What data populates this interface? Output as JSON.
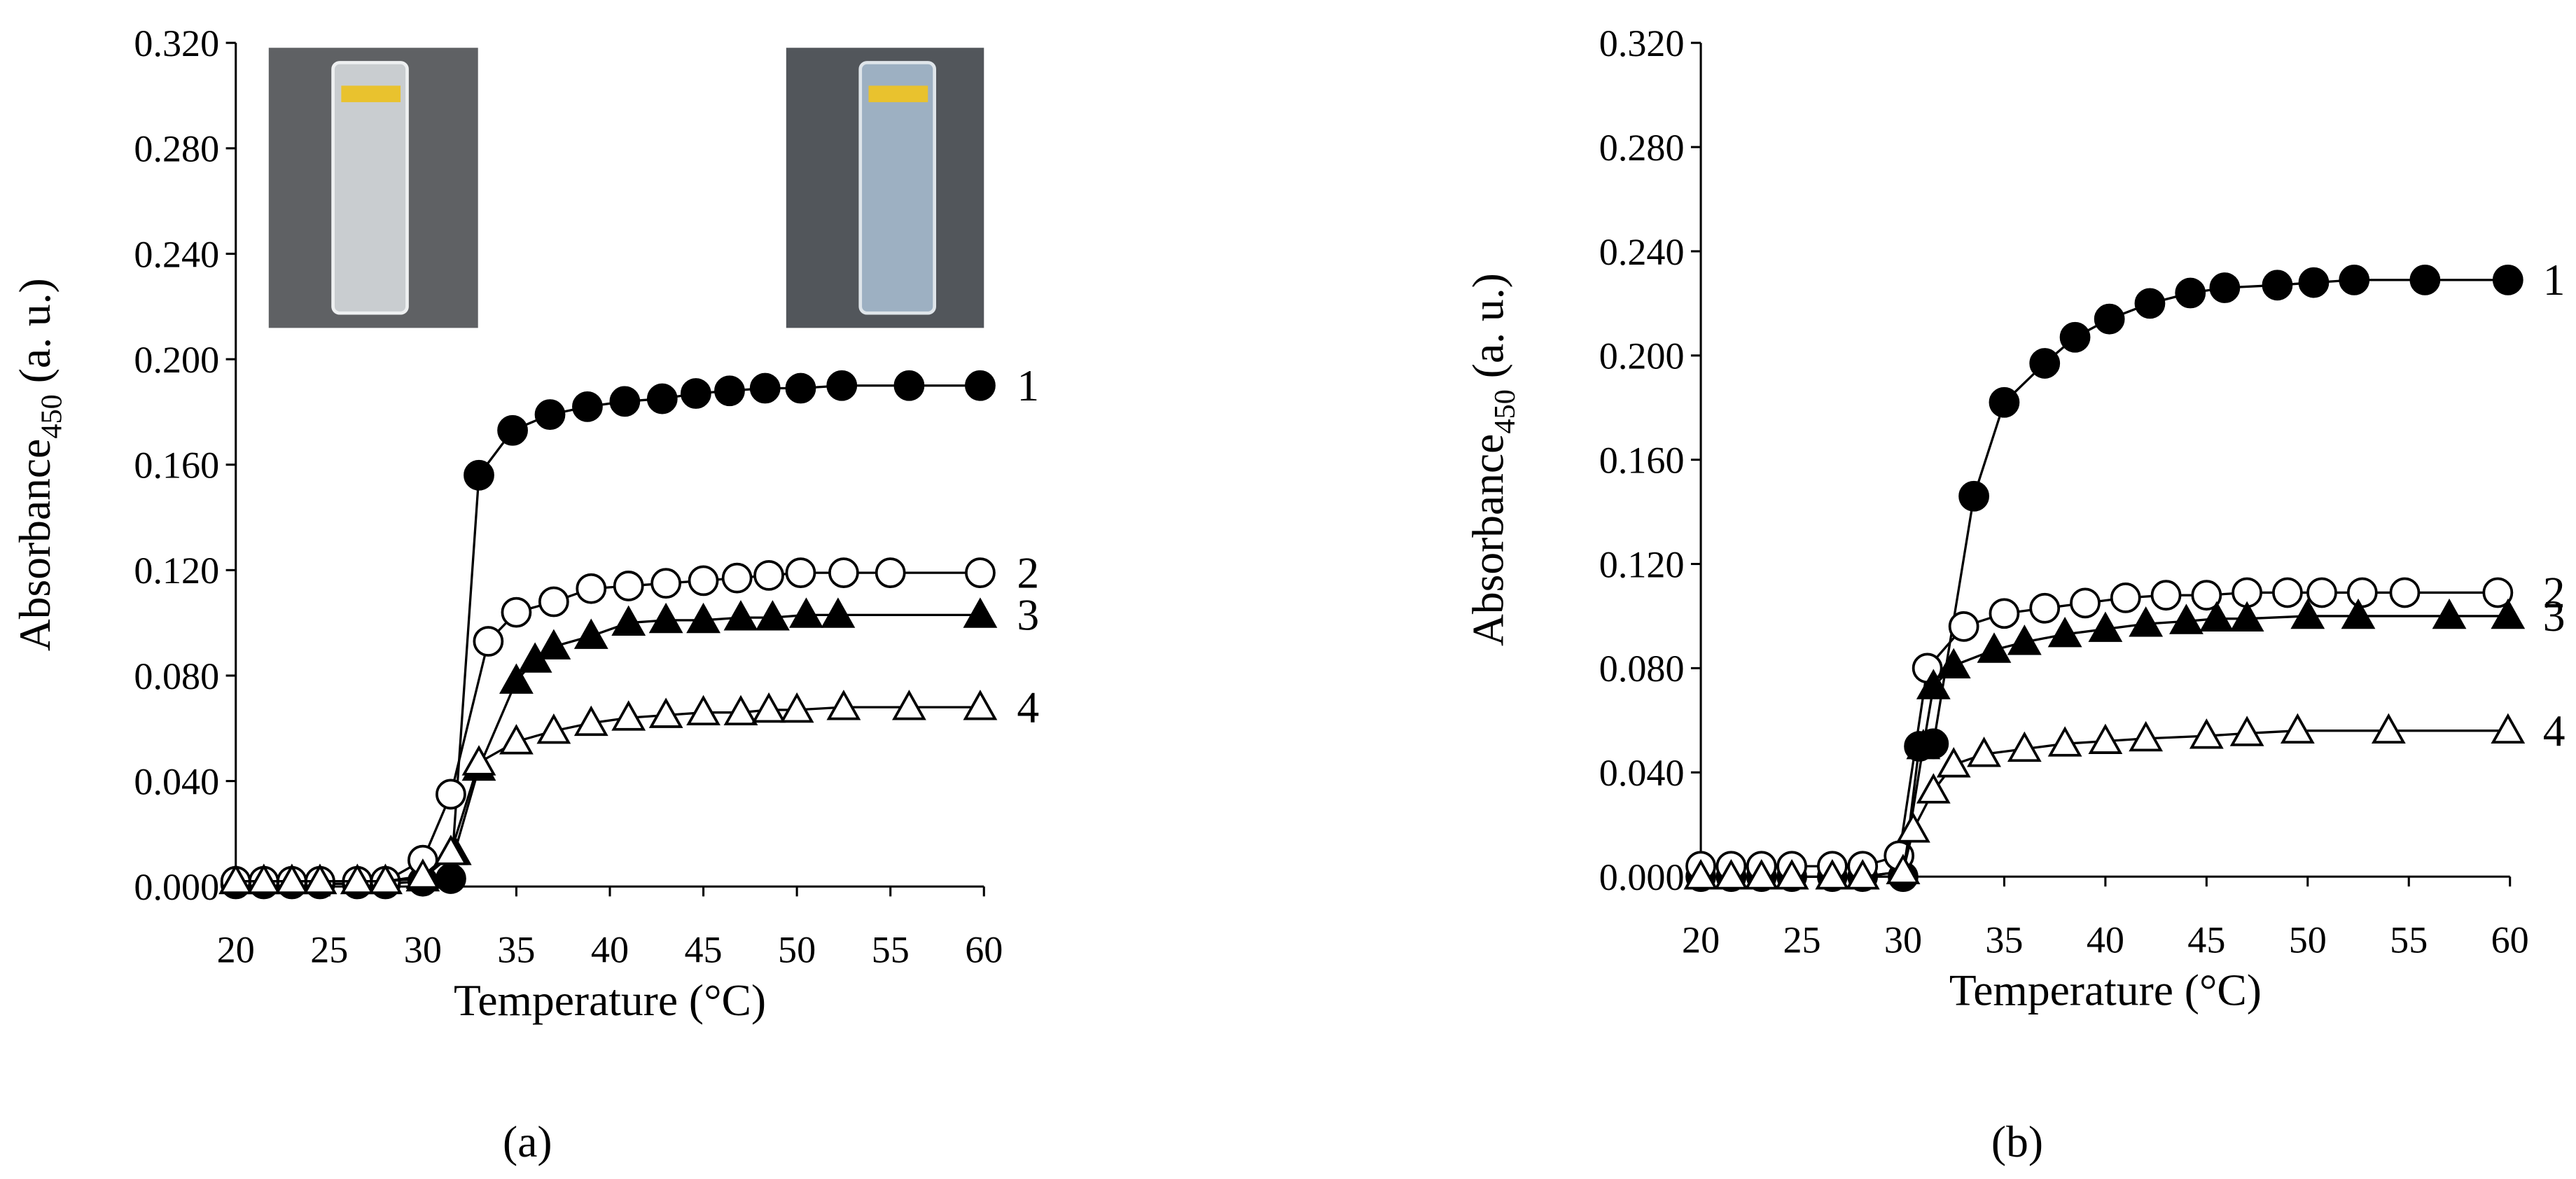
{
  "chart_data": [
    {
      "type": "line",
      "panel_label": "(a)",
      "xlabel": "Temperature (°C)",
      "ylabel": "Absorbance",
      "ylabel_sub": "450",
      "ylabel_unit": " (a. u.)",
      "xlim": [
        20,
        60
      ],
      "xticks": [
        20,
        25,
        30,
        35,
        40,
        45,
        50,
        55,
        60
      ],
      "ylim": [
        0,
        0.32
      ],
      "yticks": [
        {
          "value": 0,
          "label": "0.000"
        },
        {
          "value": 0.04,
          "label": "0.040"
        },
        {
          "value": 0.08,
          "label": "0.080"
        },
        {
          "value": 0.12,
          "label": "0.120"
        },
        {
          "value": 0.16,
          "label": "0.160"
        },
        {
          "value": 0.2,
          "label": "0.200"
        },
        {
          "value": 0.24,
          "label": "0.240"
        },
        {
          "value": 0.28,
          "label": "0.280"
        },
        {
          "value": 0.32,
          "label": "0.320"
        }
      ],
      "series": [
        {
          "name": "1",
          "marker": "circle",
          "color": "#000000",
          "fill": "#000000",
          "x": [
            20,
            21.5,
            23,
            24.5,
            26.5,
            28,
            30,
            31.5,
            33,
            34.8,
            36.8,
            38.8,
            40.8,
            42.8,
            44.6,
            46.4,
            48.3,
            50.2,
            52.4,
            56,
            59.8
          ],
          "values": [
            0.001,
            0.001,
            0.001,
            0.001,
            0.001,
            0.001,
            0.002,
            0.003,
            0.156,
            0.173,
            0.179,
            0.182,
            0.184,
            0.185,
            0.187,
            0.188,
            0.189,
            0.189,
            0.19,
            0.19,
            0.19
          ]
        },
        {
          "name": "2",
          "marker": "circle",
          "color": "#000000",
          "fill": "#ffffff",
          "x": [
            20,
            21.5,
            23,
            24.5,
            26.5,
            28,
            30,
            31.5,
            33.5,
            35,
            37,
            39,
            41,
            43,
            45,
            46.8,
            48.5,
            50.2,
            52.5,
            55,
            59.8
          ],
          "values": [
            0.002,
            0.002,
            0.002,
            0.002,
            0.002,
            0.002,
            0.01,
            0.035,
            0.093,
            0.104,
            0.108,
            0.113,
            0.114,
            0.115,
            0.116,
            0.117,
            0.118,
            0.119,
            0.119,
            0.119,
            0.119
          ]
        },
        {
          "name": "3",
          "marker": "triangle",
          "color": "#000000",
          "fill": "#000000",
          "x": [
            20,
            21.5,
            23,
            24.5,
            26.5,
            28,
            30,
            31.7,
            33,
            35,
            36,
            37,
            39,
            41,
            43,
            45,
            47,
            48.7,
            50.5,
            52.2,
            59.8
          ],
          "values": [
            0.002,
            0.002,
            0.002,
            0.002,
            0.002,
            0.002,
            0.003,
            0.013,
            0.045,
            0.078,
            0.086,
            0.091,
            0.095,
            0.1,
            0.101,
            0.101,
            0.102,
            0.102,
            0.103,
            0.103,
            0.103
          ]
        },
        {
          "name": "4",
          "marker": "triangle",
          "color": "#000000",
          "fill": "#ffffff",
          "x": [
            20,
            21.5,
            23,
            24.5,
            26.5,
            28,
            30,
            31.5,
            33,
            35,
            37,
            39,
            41,
            43,
            45,
            47,
            48.5,
            50,
            52.5,
            56,
            59.8
          ],
          "values": [
            0.002,
            0.002,
            0.002,
            0.002,
            0.002,
            0.002,
            0.004,
            0.013,
            0.047,
            0.055,
            0.059,
            0.062,
            0.064,
            0.065,
            0.066,
            0.066,
            0.067,
            0.067,
            0.068,
            0.068,
            0.068
          ]
        }
      ]
    },
    {
      "type": "line",
      "panel_label": "(b)",
      "xlabel": "Temperature (°C)",
      "ylabel": "Absorbance",
      "ylabel_sub": "450",
      "ylabel_unit": " (a. u.)",
      "xlim": [
        20,
        60
      ],
      "xticks": [
        20,
        25,
        30,
        35,
        40,
        45,
        50,
        55,
        60
      ],
      "ylim": [
        0,
        0.32
      ],
      "yticks": [
        {
          "value": 0,
          "label": "0.000"
        },
        {
          "value": 0.04,
          "label": "0.040"
        },
        {
          "value": 0.08,
          "label": "0.080"
        },
        {
          "value": 0.12,
          "label": "0.120"
        },
        {
          "value": 0.16,
          "label": "0.160"
        },
        {
          "value": 0.2,
          "label": "0.200"
        },
        {
          "value": 0.24,
          "label": "0.240"
        },
        {
          "value": 0.28,
          "label": "0.280"
        },
        {
          "value": 0.32,
          "label": "0.320"
        }
      ],
      "series": [
        {
          "name": "1",
          "marker": "circle",
          "color": "#000000",
          "fill": "#000000",
          "x": [
            20,
            21.5,
            23,
            24.5,
            26.5,
            28,
            30,
            30.8,
            31.5,
            33.5,
            35,
            37,
            38.5,
            40.2,
            42.2,
            44.2,
            45.9,
            48.5,
            50.3,
            52.3,
            55.8,
            59.9
          ],
          "values": [
            0,
            0,
            0,
            0,
            0,
            0,
            0,
            0.05,
            0.051,
            0.146,
            0.182,
            0.197,
            0.207,
            0.214,
            0.22,
            0.224,
            0.226,
            0.227,
            0.228,
            0.229,
            0.229,
            0.229
          ]
        },
        {
          "name": "2",
          "marker": "circle",
          "color": "#000000",
          "fill": "#ffffff",
          "x": [
            20,
            21.5,
            23,
            24.5,
            26.5,
            28,
            29.8,
            31.2,
            33,
            35,
            37,
            39,
            41,
            43,
            45,
            47,
            49,
            50.7,
            52.7,
            54.8,
            59.4
          ],
          "values": [
            0.004,
            0.004,
            0.004,
            0.004,
            0.004,
            0.004,
            0.008,
            0.08,
            0.096,
            0.101,
            0.103,
            0.105,
            0.107,
            0.108,
            0.108,
            0.109,
            0.109,
            0.109,
            0.109,
            0.109,
            0.109
          ]
        },
        {
          "name": "3",
          "marker": "triangle",
          "color": "#000000",
          "fill": "#000000",
          "x": [
            20,
            21.5,
            23,
            24.5,
            26.5,
            28,
            30,
            31,
            31.5,
            32.5,
            34.5,
            36,
            38,
            40,
            42,
            44,
            45.5,
            47,
            50,
            52.5,
            57,
            59.9
          ],
          "values": [
            0,
            0,
            0,
            0,
            0,
            0,
            0.002,
            0.05,
            0.073,
            0.081,
            0.087,
            0.09,
            0.093,
            0.095,
            0.097,
            0.098,
            0.099,
            0.099,
            0.1,
            0.1,
            0.1,
            0.1
          ]
        },
        {
          "name": "4",
          "marker": "triangle",
          "color": "#000000",
          "fill": "#ffffff",
          "x": [
            20,
            21.5,
            23,
            24.5,
            26.5,
            28,
            30,
            30.5,
            31.5,
            32.5,
            34,
            36,
            38,
            40,
            42,
            45,
            47,
            49.5,
            54,
            59.9
          ],
          "values": [
            0,
            0,
            0,
            0,
            0,
            0,
            0.002,
            0.018,
            0.033,
            0.043,
            0.047,
            0.049,
            0.051,
            0.052,
            0.053,
            0.054,
            0.055,
            0.056,
            0.056,
            0.056
          ]
        }
      ]
    }
  ]
}
